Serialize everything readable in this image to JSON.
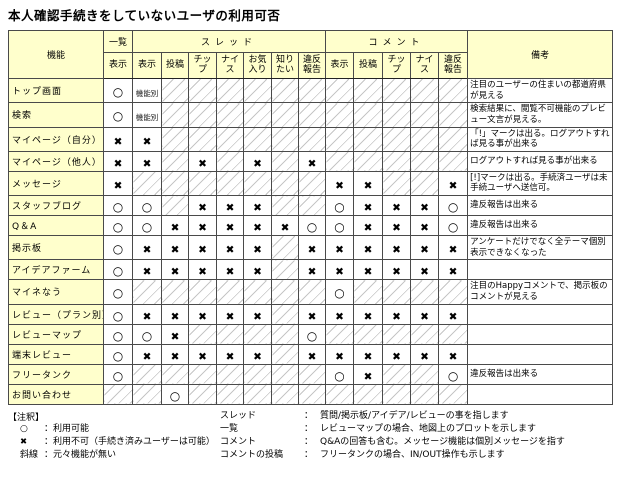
{
  "title": "本人確認手続きをしていないユーザの利用可否",
  "colors": {
    "header_bg": "#ffffcc",
    "border": "#4a4a4a",
    "hatch_line": "#c6c6c6"
  },
  "symbols": {
    "o": "○",
    "x": "✖",
    "fn": "機能別"
  },
  "table": {
    "function_header": "機能",
    "remarks_header": "備考",
    "groups": [
      {
        "label": "一覧",
        "spaced": false,
        "subs": [
          "表示"
        ]
      },
      {
        "label": "スレッド",
        "spaced": true,
        "subs": [
          "表示",
          "投稿",
          "チッ\nプ",
          "ナイ\nス",
          "お気\n入り",
          "知り\nたい",
          "違反\n報告"
        ]
      },
      {
        "label": "コメント",
        "spaced": true,
        "subs": [
          "表示",
          "投稿",
          "チッ\nプ",
          "ナイ\nス",
          "違反\n報告"
        ]
      }
    ],
    "rows": [
      {
        "name": "トップ画面",
        "cells": [
          "o",
          "fn",
          "h",
          "h",
          "h",
          "h",
          "h",
          "h",
          "h",
          "h",
          "h",
          "h",
          "h"
        ],
        "remark": "注目のユーザーの住まいの都道府県が見える"
      },
      {
        "name": "検索",
        "cells": [
          "o",
          "fn",
          "h",
          "h",
          "h",
          "h",
          "h",
          "h",
          "h",
          "h",
          "h",
          "h",
          "h"
        ],
        "remark": "検索結果に、閲覧不可機能のプレビュー文言が見える。"
      },
      {
        "name": "マイページ（自分）",
        "cells": [
          "x",
          "x",
          "h",
          "h",
          "h",
          "h",
          "h",
          "h",
          "h",
          "h",
          "h",
          "h",
          "h"
        ],
        "remark": "「!」マークは出る。ログアウトすれば見る事が出来る"
      },
      {
        "name": "マイページ（他人）",
        "cells": [
          "x",
          "x",
          "h",
          "x",
          "h",
          "x",
          "h",
          "x",
          "h",
          "h",
          "h",
          "h",
          "h"
        ],
        "remark": "ログアウトすれば見る事が出来る"
      },
      {
        "name": "メッセージ",
        "cells": [
          "x",
          "h",
          "h",
          "h",
          "h",
          "h",
          "h",
          "h",
          "x",
          "x",
          "h",
          "h",
          "x"
        ],
        "remark": "[!]マークは出る。手続済ユーザは未手続ユーザへ送信可。"
      },
      {
        "name": "スタッフブログ",
        "cells": [
          "o",
          "o",
          "h",
          "x",
          "x",
          "x",
          "h",
          "h",
          "o",
          "x",
          "x",
          "x",
          "o"
        ],
        "remark": "違反報告は出来る"
      },
      {
        "name": "Q＆A",
        "cells": [
          "o",
          "o",
          "x",
          "x",
          "x",
          "x",
          "x",
          "o",
          "o",
          "x",
          "x",
          "x",
          "o"
        ],
        "remark": "違反報告は出来る"
      },
      {
        "name": "掲示板",
        "cells": [
          "o",
          "x",
          "x",
          "x",
          "x",
          "x",
          "h",
          "x",
          "x",
          "x",
          "x",
          "x",
          "x"
        ],
        "remark": "アンケートだけでなく全テーマ個別表示できなくなった"
      },
      {
        "name": "アイデアファーム",
        "cells": [
          "o",
          "x",
          "x",
          "x",
          "x",
          "x",
          "h",
          "x",
          "x",
          "x",
          "x",
          "x",
          "x"
        ],
        "remark": ""
      },
      {
        "name": "マイネなう",
        "cells": [
          "o",
          "h",
          "h",
          "h",
          "h",
          "h",
          "h",
          "h",
          "o",
          "h",
          "h",
          "h",
          "h"
        ],
        "remark": "注目のHappyコメントで、掲示板のコメントが見える"
      },
      {
        "name": "レビュー（プラン別）",
        "cells": [
          "o",
          "x",
          "x",
          "x",
          "x",
          "x",
          "h",
          "x",
          "x",
          "x",
          "x",
          "x",
          "x"
        ],
        "remark": ""
      },
      {
        "name": "レビューマップ",
        "cells": [
          "o",
          "o",
          "x",
          "h",
          "h",
          "h",
          "h",
          "o",
          "h",
          "h",
          "h",
          "h",
          "h"
        ],
        "remark": ""
      },
      {
        "name": "端末レビュー",
        "cells": [
          "o",
          "x",
          "x",
          "x",
          "x",
          "x",
          "h",
          "x",
          "x",
          "x",
          "x",
          "x",
          "x"
        ],
        "remark": ""
      },
      {
        "name": "フリータンク",
        "cells": [
          "o",
          "h",
          "h",
          "h",
          "h",
          "h",
          "h",
          "h",
          "o",
          "x",
          "h",
          "h",
          "o"
        ],
        "remark": "違反報告は出来る"
      },
      {
        "name": "お問い合わせ",
        "cells": [
          "h",
          "h",
          "o",
          "h",
          "h",
          "h",
          "h",
          "h",
          "h",
          "h",
          "h",
          "h",
          "h"
        ],
        "remark": ""
      }
    ]
  },
  "legend": {
    "title": "【注釈】",
    "colon": "：",
    "items": [
      {
        "sym": "o",
        "sym_text": "○",
        "desc": "利用可能"
      },
      {
        "sym": "x",
        "sym_text": "✖",
        "desc": "利用不可（手続き済みユーザーは可能）"
      },
      {
        "sym": "hatch",
        "sym_text": "斜線",
        "desc": "元々機能が無い"
      }
    ]
  },
  "definitions": {
    "colon": "：",
    "items": [
      {
        "term": "スレッド",
        "desc": "質問/掲示板/アイデア/レビューの事を指します"
      },
      {
        "term": "一覧",
        "desc": "レビューマップの場合、地図上のプロットを示します"
      },
      {
        "term": "コメント",
        "desc": "Q&Aの回答も含む。メッセージ機能は個別メッセージを指す"
      },
      {
        "term": "コメントの投稿",
        "desc": "フリータンクの場合、IN/OUT操作も示します"
      }
    ]
  }
}
